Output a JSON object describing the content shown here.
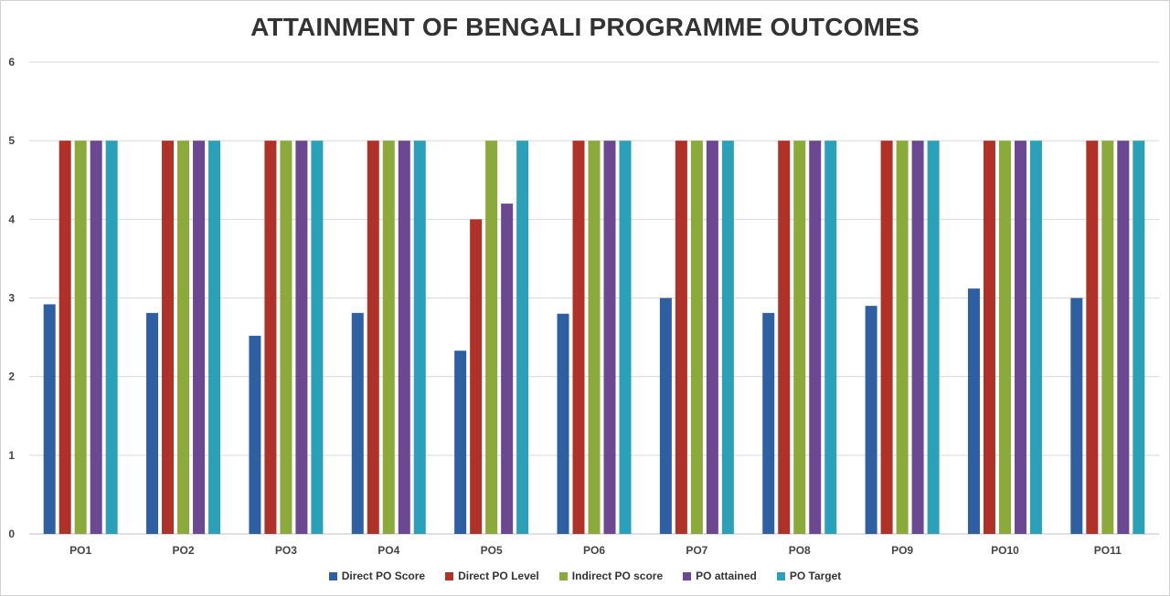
{
  "chart_data": {
    "type": "bar",
    "title": "ATTAINMENT  OF BENGALI PROGRAMME OUTCOMES",
    "xlabel": "",
    "ylabel": "",
    "ylim": [
      0,
      6
    ],
    "yticks": [
      "0",
      "1",
      "2",
      "3",
      "4",
      "5",
      "6"
    ],
    "grid": true,
    "legend_position": "bottom",
    "categories": [
      "PO1",
      "PO2",
      "PO3",
      "PO4",
      "PO5",
      "PO6",
      "PO7",
      "PO8",
      "PO9",
      "PO10",
      "PO11"
    ],
    "series": [
      {
        "name": "Direct PO Score",
        "color": "#2e5fa3",
        "values": [
          2.92,
          2.81,
          2.52,
          2.81,
          2.33,
          2.8,
          3.0,
          2.81,
          2.9,
          3.12,
          3.0
        ]
      },
      {
        "name": "Direct PO Level",
        "color": "#b03128",
        "values": [
          5,
          5,
          5,
          5,
          4,
          5,
          5,
          5,
          5,
          5,
          5
        ]
      },
      {
        "name": "Indirect PO score",
        "color": "#8aaa3a",
        "values": [
          5,
          5,
          5,
          5,
          5,
          5,
          5,
          5,
          5,
          5,
          5
        ]
      },
      {
        "name": "PO attained",
        "color": "#6b4891",
        "values": [
          5,
          5,
          5,
          5,
          4.2,
          5,
          5,
          5,
          5,
          5,
          5
        ]
      },
      {
        "name": "PO Target",
        "color": "#2aa0b9",
        "values": [
          5,
          5,
          5,
          5,
          5,
          5,
          5,
          5,
          5,
          5,
          5
        ]
      }
    ]
  }
}
